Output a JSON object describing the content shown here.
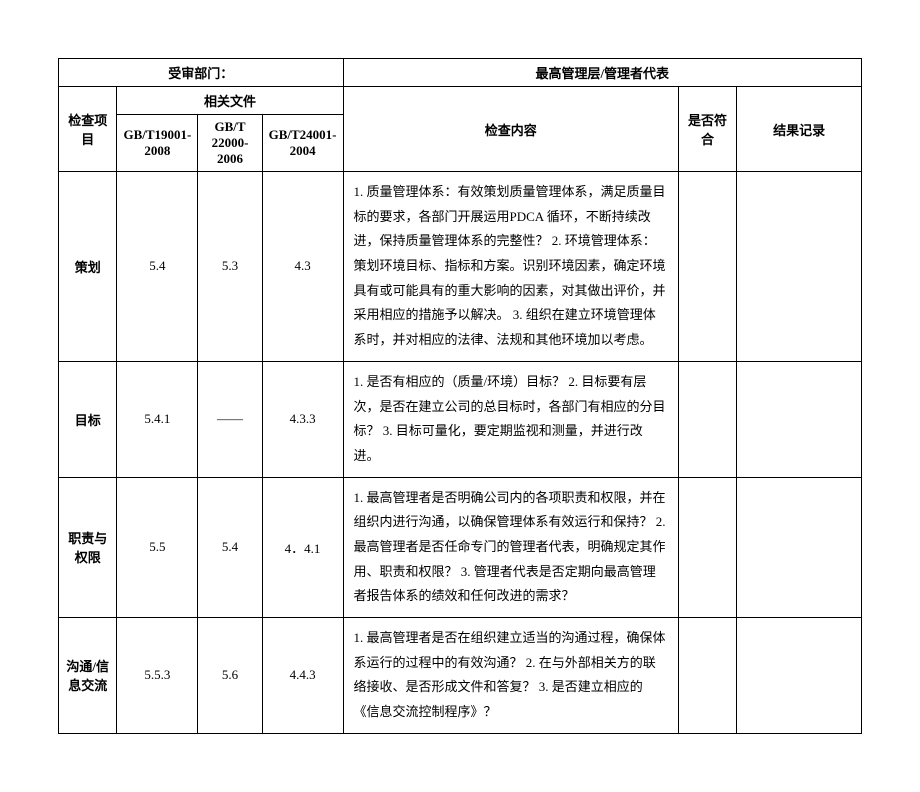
{
  "header": {
    "left_label": "受审部门：",
    "right_label": "最高管理层/管理者代表"
  },
  "columns": {
    "item": "检查项目",
    "related_docs": "相关文件",
    "std1": "GB/T19001-2008",
    "std2": "GB/T 22000-2006",
    "std3": "GB/T24001-2004",
    "content": "检查内容",
    "compliance": "是否符合",
    "result": "结果记录"
  },
  "rows": [
    {
      "item": "策划",
      "std1": "5.4",
      "std2": "5.3",
      "std3": "4.3",
      "content": "1. 质量管理体系：有效策划质量管理体系，满足质量目标的要求，各部门开展运用PDCA 循环，不断持续改进，保持质量管理体系的完整性？\n2. 环境管理体系：策划环境目标、指标和方案。识别环境因素，确定环境具有或可能具有的重大影响的因素，对其做出评价，并采用相应的措施予以解决。\n3. 组织在建立环境管理体系时，并对相应的法律、法规和其他环境加以考虑。"
    },
    {
      "item": "目标",
      "std1": "5.4.1",
      "std2": "——",
      "std3": "4.3.3",
      "content": "1. 是否有相应的（质量/环境）目标？\n2. 目标要有层次，是否在建立公司的总目标时，各部门有相应的分目标？\n3. 目标可量化，要定期监视和测量，并进行改进。"
    },
    {
      "item": "职责与权限",
      "std1": "5.5",
      "std2": "5.4",
      "std3": "4．4.1",
      "content": "1. 最高管理者是否明确公司内的各项职责和权限，并在组织内进行沟通，以确保管理体系有效运行和保持？\n2. 最高管理者是否任命专门的管理者代表，明确规定其作用、职责和权限？\n3. 管理者代表是否定期向最高管理者报告体系的绩效和任何改进的需求？"
    },
    {
      "item": "沟通/信息交流",
      "std1": "5.5.3",
      "std2": "5.6",
      "std3": "4.4.3",
      "content": "1. 最高管理者是否在组织建立适当的沟通过程，确保体系运行的过程中的有效沟通？\n2. 在与外部相关方的联络接收、是否形成文件和答复？\n3. 是否建立相应的《信息交流控制程序》？"
    }
  ]
}
